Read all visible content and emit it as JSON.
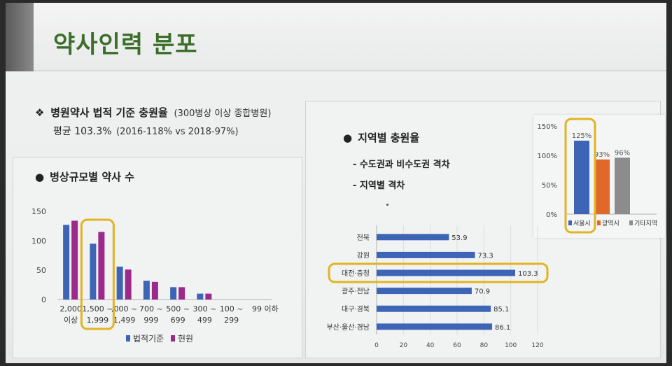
{
  "title": "약사인력 분포",
  "headline": {
    "bullet": "❖",
    "main": "병원약사 법적 기준 충원율",
    "sub": "(300병상 이상 종합병원)"
  },
  "subline": {
    "average": "평균 103.3%",
    "note": "(2016-118% vs 2018-97%)"
  },
  "left_panel": {
    "bullet": "●",
    "title": "병상규모별 약사 수"
  },
  "right_panel": {
    "bullet": "●",
    "title": "지역별 충원율",
    "items": [
      "- 수도권과 비수도권 격차",
      "- 지역별 격차"
    ]
  },
  "colors": {
    "title_green": "#3c6e2b",
    "blue": "#3e64b6",
    "purple": "#9b2a8a",
    "orange": "#e0682a",
    "gray": "#8c8c8c",
    "highlight": "#e2b422"
  },
  "chart_data": [
    {
      "type": "bar",
      "categories": [
        [
          "2,000",
          "이상"
        ],
        [
          "1,500 ~",
          "1,999"
        ],
        [
          ",000 ~",
          "1,499"
        ],
        [
          "700 ~",
          "999"
        ],
        [
          "500 ~",
          "699"
        ],
        [
          "300 ~",
          "499"
        ],
        [
          "100 ~",
          "299"
        ],
        [
          "99 이하"
        ]
      ],
      "series": [
        {
          "name": "법적기준",
          "values": [
            127,
            95,
            56,
            32,
            21,
            10,
            0,
            0
          ]
        },
        {
          "name": "현원",
          "values": [
            134,
            115,
            51,
            30,
            21,
            10,
            0,
            0
          ]
        }
      ],
      "yticks": [
        "0",
        "50",
        "100",
        "150"
      ],
      "ylim": [
        0,
        150
      ],
      "legend": "bottom",
      "highlight_category": 1
    },
    {
      "type": "bar",
      "orientation": "horizontal",
      "categories": [
        "전북",
        "강원",
        "대전·충청",
        "광주·전남",
        "대구·경북",
        "부산·울산·경남"
      ],
      "values": [
        53.9,
        73.3,
        103.3,
        70.9,
        85.1,
        86.1
      ],
      "value_labels": [
        "53.9",
        "73.3",
        "103.3",
        "70.9",
        "85.1",
        "86.1"
      ],
      "xticks": [
        "0",
        "20",
        "40",
        "60",
        "80",
        "100",
        "120"
      ],
      "xlim": [
        0,
        120
      ],
      "highlight_category": 2
    },
    {
      "type": "bar",
      "categories": [
        "서울시",
        "광역시",
        "기타지역"
      ],
      "values": [
        125,
        93,
        96
      ],
      "value_labels": [
        "125%",
        "93%",
        "96%"
      ],
      "yticks": [
        "0%",
        "50%",
        "100%",
        "150%"
      ],
      "ylim": [
        0,
        150
      ],
      "legend": "bottom",
      "highlight_category": 0
    }
  ]
}
